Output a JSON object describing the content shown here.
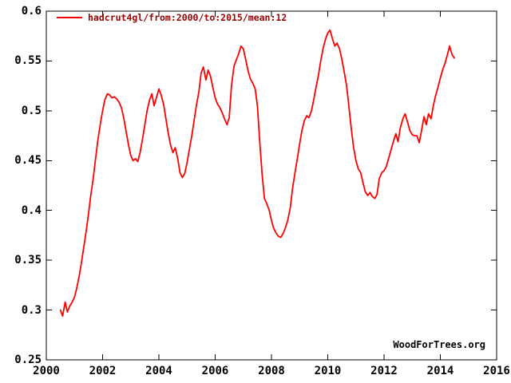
{
  "colors": {
    "background": "#ffffff",
    "axis": "#000000",
    "series_line": "#ff0000",
    "legend_text": "#990000",
    "watermark_text": "#000000"
  },
  "chart_data": {
    "type": "line",
    "title": "",
    "xlabel": "",
    "ylabel": "",
    "legend_label": "hadcrut4gl/from:2000/to:2015/mean:12",
    "legend_position": "top-left-inside",
    "watermark": "WoodForTrees.org",
    "grid": false,
    "xlim": [
      2000,
      2016
    ],
    "ylim": [
      0.25,
      0.6
    ],
    "x_ticks": [
      2000,
      2002,
      2004,
      2006,
      2008,
      2010,
      2012,
      2014,
      2016
    ],
    "x_tick_labels": [
      "2000",
      "2002",
      "2004",
      "2006",
      "2008",
      "2010",
      "2012",
      "2014",
      "2016"
    ],
    "y_ticks": [
      0.25,
      0.3,
      0.35,
      0.4,
      0.45,
      0.5,
      0.55,
      0.6
    ],
    "y_tick_labels": [
      "0.25",
      "0.3",
      "0.35",
      "0.4",
      "0.45",
      "0.5",
      "0.55",
      "0.6"
    ],
    "series": [
      {
        "name": "hadcrut4gl/from:2000/to:2015/mean:12",
        "color": "#ff0000",
        "points": [
          [
            2000.5,
            0.3
          ],
          [
            2000.58,
            0.294
          ],
          [
            2000.67,
            0.308
          ],
          [
            2000.75,
            0.298
          ],
          [
            2000.83,
            0.304
          ],
          [
            2000.92,
            0.308
          ],
          [
            2001.0,
            0.313
          ],
          [
            2001.08,
            0.322
          ],
          [
            2001.17,
            0.334
          ],
          [
            2001.25,
            0.348
          ],
          [
            2001.33,
            0.363
          ],
          [
            2001.42,
            0.38
          ],
          [
            2001.5,
            0.397
          ],
          [
            2001.58,
            0.415
          ],
          [
            2001.67,
            0.433
          ],
          [
            2001.75,
            0.452
          ],
          [
            2001.83,
            0.47
          ],
          [
            2001.92,
            0.487
          ],
          [
            2002.0,
            0.5
          ],
          [
            2002.08,
            0.511
          ],
          [
            2002.17,
            0.517
          ],
          [
            2002.25,
            0.516
          ],
          [
            2002.33,
            0.513
          ],
          [
            2002.42,
            0.514
          ],
          [
            2002.5,
            0.512
          ],
          [
            2002.58,
            0.509
          ],
          [
            2002.67,
            0.503
          ],
          [
            2002.75,
            0.493
          ],
          [
            2002.83,
            0.48
          ],
          [
            2002.92,
            0.466
          ],
          [
            2003.0,
            0.455
          ],
          [
            2003.08,
            0.45
          ],
          [
            2003.17,
            0.452
          ],
          [
            2003.25,
            0.449
          ],
          [
            2003.33,
            0.458
          ],
          [
            2003.42,
            0.472
          ],
          [
            2003.5,
            0.486
          ],
          [
            2003.58,
            0.5
          ],
          [
            2003.67,
            0.511
          ],
          [
            2003.75,
            0.517
          ],
          [
            2003.83,
            0.505
          ],
          [
            2003.92,
            0.514
          ],
          [
            2004.0,
            0.522
          ],
          [
            2004.08,
            0.516
          ],
          [
            2004.17,
            0.506
          ],
          [
            2004.25,
            0.492
          ],
          [
            2004.33,
            0.478
          ],
          [
            2004.42,
            0.465
          ],
          [
            2004.5,
            0.458
          ],
          [
            2004.58,
            0.463
          ],
          [
            2004.67,
            0.452
          ],
          [
            2004.75,
            0.438
          ],
          [
            2004.83,
            0.433
          ],
          [
            2004.92,
            0.437
          ],
          [
            2005.0,
            0.448
          ],
          [
            2005.08,
            0.461
          ],
          [
            2005.17,
            0.475
          ],
          [
            2005.25,
            0.49
          ],
          [
            2005.33,
            0.505
          ],
          [
            2005.42,
            0.519
          ],
          [
            2005.5,
            0.538
          ],
          [
            2005.58,
            0.544
          ],
          [
            2005.67,
            0.531
          ],
          [
            2005.75,
            0.541
          ],
          [
            2005.83,
            0.535
          ],
          [
            2005.92,
            0.523
          ],
          [
            2006.0,
            0.513
          ],
          [
            2006.08,
            0.507
          ],
          [
            2006.17,
            0.503
          ],
          [
            2006.25,
            0.498
          ],
          [
            2006.33,
            0.492
          ],
          [
            2006.42,
            0.486
          ],
          [
            2006.5,
            0.493
          ],
          [
            2006.58,
            0.525
          ],
          [
            2006.67,
            0.545
          ],
          [
            2006.75,
            0.551
          ],
          [
            2006.83,
            0.557
          ],
          [
            2006.92,
            0.565
          ],
          [
            2007.0,
            0.562
          ],
          [
            2007.08,
            0.552
          ],
          [
            2007.17,
            0.54
          ],
          [
            2007.25,
            0.532
          ],
          [
            2007.33,
            0.528
          ],
          [
            2007.42,
            0.522
          ],
          [
            2007.5,
            0.505
          ],
          [
            2007.58,
            0.47
          ],
          [
            2007.67,
            0.435
          ],
          [
            2007.75,
            0.412
          ],
          [
            2007.83,
            0.407
          ],
          [
            2007.92,
            0.4
          ],
          [
            2008.0,
            0.39
          ],
          [
            2008.08,
            0.382
          ],
          [
            2008.17,
            0.377
          ],
          [
            2008.25,
            0.374
          ],
          [
            2008.33,
            0.373
          ],
          [
            2008.42,
            0.377
          ],
          [
            2008.5,
            0.383
          ],
          [
            2008.58,
            0.39
          ],
          [
            2008.67,
            0.403
          ],
          [
            2008.75,
            0.422
          ],
          [
            2008.83,
            0.437
          ],
          [
            2008.92,
            0.452
          ],
          [
            2009.0,
            0.467
          ],
          [
            2009.08,
            0.48
          ],
          [
            2009.17,
            0.49
          ],
          [
            2009.25,
            0.495
          ],
          [
            2009.33,
            0.493
          ],
          [
            2009.42,
            0.5
          ],
          [
            2009.5,
            0.511
          ],
          [
            2009.58,
            0.523
          ],
          [
            2009.67,
            0.536
          ],
          [
            2009.75,
            0.55
          ],
          [
            2009.83,
            0.562
          ],
          [
            2009.92,
            0.572
          ],
          [
            2010.0,
            0.578
          ],
          [
            2010.08,
            0.581
          ],
          [
            2010.17,
            0.572
          ],
          [
            2010.25,
            0.565
          ],
          [
            2010.33,
            0.568
          ],
          [
            2010.42,
            0.562
          ],
          [
            2010.5,
            0.552
          ],
          [
            2010.58,
            0.54
          ],
          [
            2010.67,
            0.525
          ],
          [
            2010.75,
            0.505
          ],
          [
            2010.83,
            0.483
          ],
          [
            2010.92,
            0.463
          ],
          [
            2011.0,
            0.45
          ],
          [
            2011.08,
            0.442
          ],
          [
            2011.17,
            0.438
          ],
          [
            2011.25,
            0.428
          ],
          [
            2011.33,
            0.419
          ],
          [
            2011.42,
            0.415
          ],
          [
            2011.5,
            0.418
          ],
          [
            2011.58,
            0.414
          ],
          [
            2011.67,
            0.412
          ],
          [
            2011.75,
            0.416
          ],
          [
            2011.83,
            0.432
          ],
          [
            2011.92,
            0.438
          ],
          [
            2012.0,
            0.44
          ],
          [
            2012.08,
            0.444
          ],
          [
            2012.17,
            0.453
          ],
          [
            2012.25,
            0.461
          ],
          [
            2012.33,
            0.469
          ],
          [
            2012.42,
            0.477
          ],
          [
            2012.5,
            0.469
          ],
          [
            2012.58,
            0.483
          ],
          [
            2012.67,
            0.492
          ],
          [
            2012.75,
            0.497
          ],
          [
            2012.83,
            0.489
          ],
          [
            2012.92,
            0.48
          ],
          [
            2013.0,
            0.476
          ],
          [
            2013.08,
            0.475
          ],
          [
            2013.17,
            0.475
          ],
          [
            2013.25,
            0.468
          ],
          [
            2013.33,
            0.48
          ],
          [
            2013.42,
            0.494
          ],
          [
            2013.5,
            0.486
          ],
          [
            2013.58,
            0.497
          ],
          [
            2013.67,
            0.492
          ],
          [
            2013.75,
            0.505
          ],
          [
            2013.83,
            0.515
          ],
          [
            2013.92,
            0.524
          ],
          [
            2014.0,
            0.533
          ],
          [
            2014.08,
            0.541
          ],
          [
            2014.17,
            0.548
          ],
          [
            2014.25,
            0.556
          ],
          [
            2014.33,
            0.565
          ],
          [
            2014.42,
            0.556
          ],
          [
            2014.5,
            0.553
          ]
        ]
      }
    ]
  }
}
